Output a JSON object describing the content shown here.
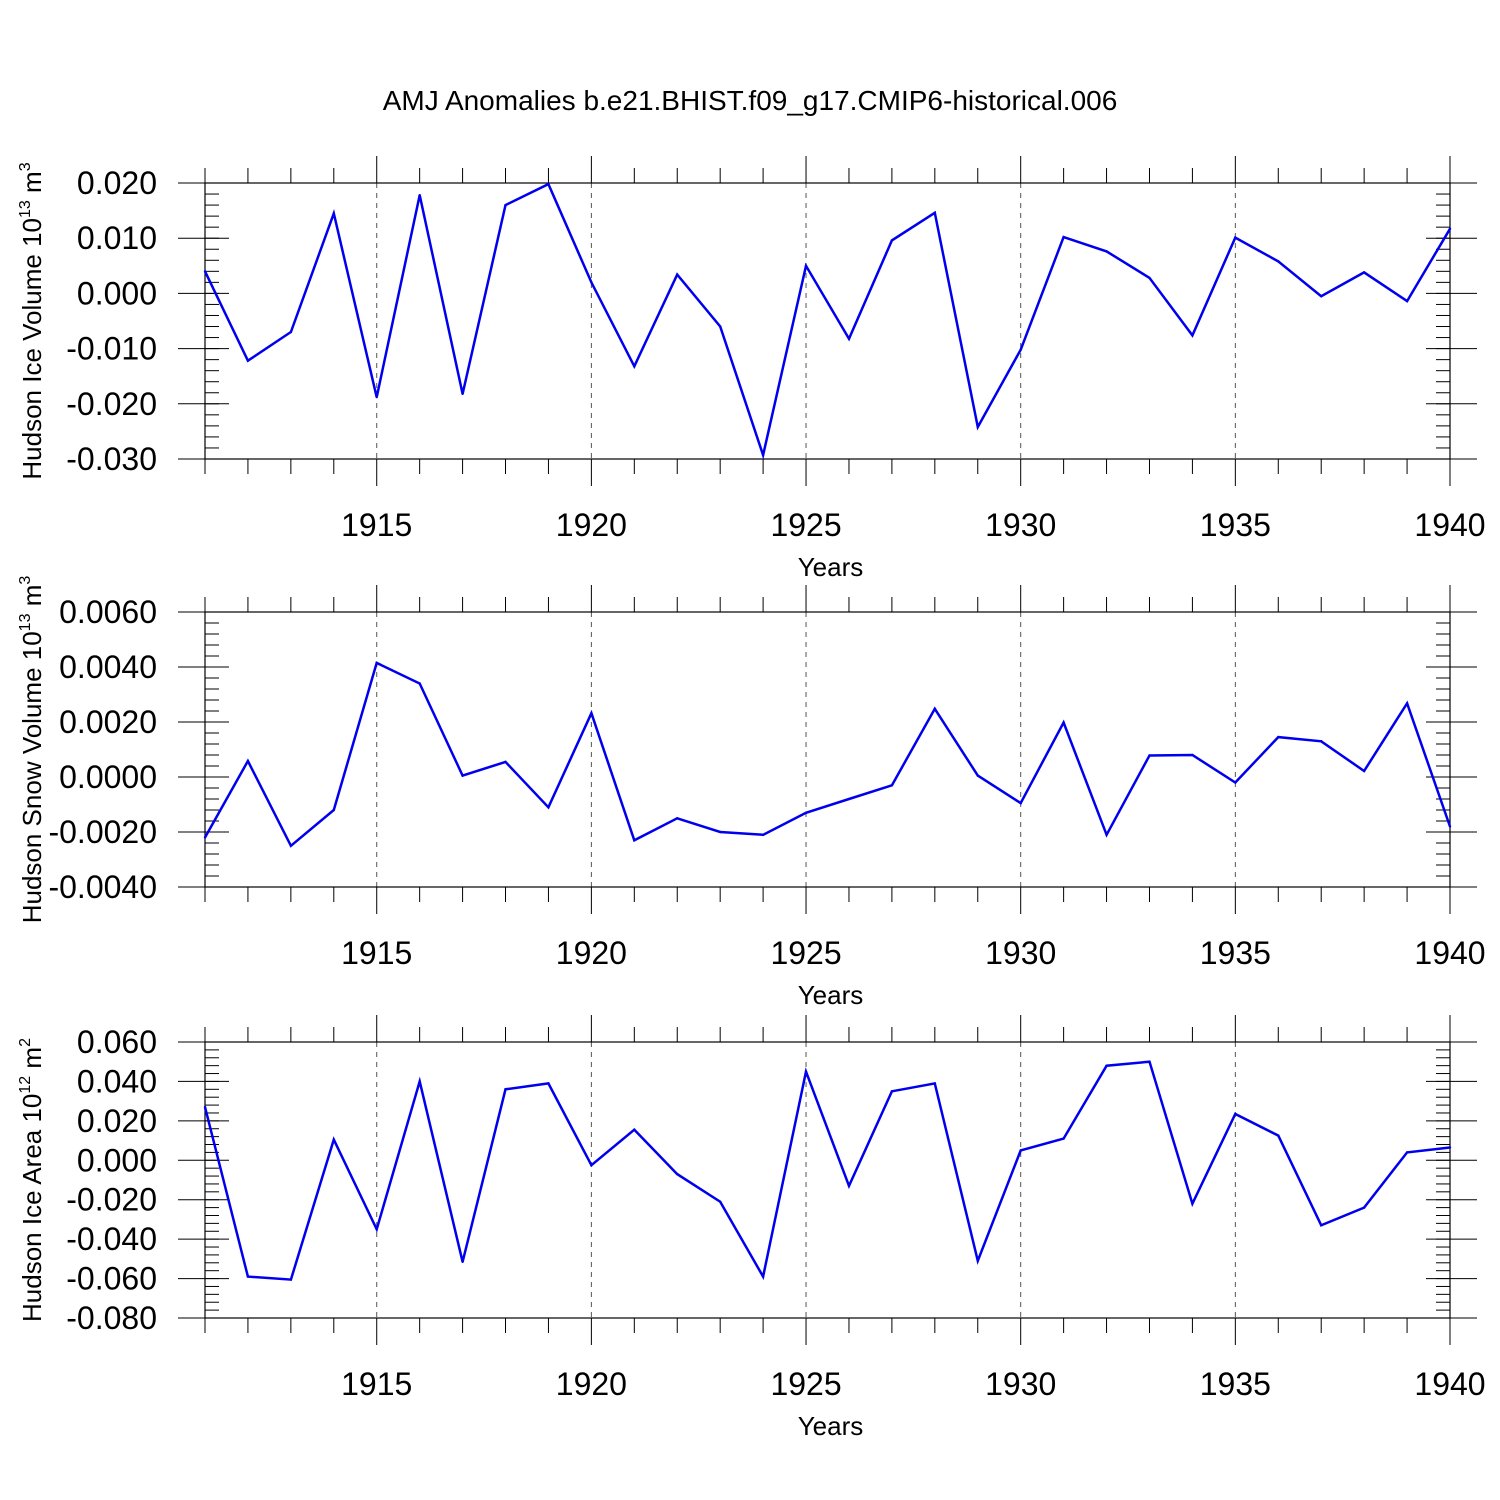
{
  "chart_data": {
    "title": "AMJ Anomalies b.e21.BHIST.f09_g17.CMIP6-historical.006",
    "type": "line",
    "x": [
      1911,
      1912,
      1913,
      1914,
      1915,
      1916,
      1917,
      1918,
      1919,
      1920,
      1921,
      1922,
      1923,
      1924,
      1925,
      1926,
      1927,
      1928,
      1929,
      1930,
      1931,
      1932,
      1933,
      1934,
      1935,
      1936,
      1937,
      1938,
      1939,
      1940
    ],
    "xlim": [
      1911,
      1940
    ],
    "xticks": [
      1915,
      1920,
      1925,
      1930,
      1935,
      1940
    ],
    "xlabel": "Years",
    "panels": [
      {
        "ylabel_main": "Hudson Ice Volume 10",
        "ylabel_exp": "13",
        "ylabel_unit": " m",
        "ylabel_unit_exp": "3",
        "ylim": [
          -0.03,
          0.02
        ],
        "yticks": [
          0.02,
          0.01,
          0.0,
          -0.01,
          -0.02,
          -0.03
        ],
        "ytick_labels": [
          "0.020",
          "0.010",
          "0.000",
          "-0.010",
          "-0.020",
          "-0.030"
        ],
        "minor_step": 0.002,
        "values": [
          0.004,
          -0.0122,
          -0.007,
          0.0145,
          -0.0188,
          0.0178,
          -0.0182,
          0.016,
          0.0198,
          0.002,
          -0.0132,
          0.0034,
          -0.006,
          -0.0293,
          0.005,
          -0.0082,
          0.0096,
          0.0146,
          -0.0242,
          -0.0102,
          0.0102,
          0.0076,
          0.0028,
          -0.0076,
          0.0101,
          0.0058,
          -0.0005,
          0.0038,
          -0.0014,
          0.0117
        ]
      },
      {
        "ylabel_main": "Hudson Snow Volume 10",
        "ylabel_exp": "13",
        "ylabel_unit": " m",
        "ylabel_unit_exp": "3",
        "ylim": [
          -0.004,
          0.006
        ],
        "yticks": [
          0.006,
          0.004,
          0.002,
          0.0,
          -0.002,
          -0.004
        ],
        "ytick_labels": [
          "0.0060",
          "0.0040",
          "0.0020",
          "0.0000",
          "-0.0020",
          "-0.0040"
        ],
        "minor_step": 0.0004,
        "values": [
          -0.0022,
          0.00058,
          -0.0025,
          -0.0012,
          0.00415,
          0.0034,
          5e-05,
          0.00055,
          -0.0011,
          0.00232,
          -0.0023,
          -0.0015,
          -0.002,
          -0.0021,
          -0.0013,
          -0.0008,
          -0.0003,
          0.00248,
          5e-05,
          -0.00095,
          0.00198,
          -0.0021,
          0.00078,
          0.0008,
          -0.0002,
          0.00145,
          0.0013,
          0.00022,
          0.00268,
          -0.0018
        ]
      },
      {
        "ylabel_main": "Hudson Ice Area 10",
        "ylabel_exp": "12",
        "ylabel_unit": " m",
        "ylabel_unit_exp": "2",
        "ylim": [
          -0.08,
          0.06
        ],
        "yticks": [
          0.06,
          0.04,
          0.02,
          0.0,
          -0.02,
          -0.04,
          -0.06,
          -0.08
        ],
        "ytick_labels": [
          "0.060",
          "0.040",
          "0.020",
          "0.000",
          "-0.020",
          "-0.040",
          "-0.060",
          "-0.080"
        ],
        "minor_step": 0.004,
        "values": [
          0.027,
          -0.059,
          -0.0605,
          0.0105,
          -0.035,
          0.04,
          -0.0515,
          0.036,
          0.039,
          -0.0025,
          0.0155,
          -0.007,
          -0.021,
          -0.059,
          0.045,
          -0.013,
          0.035,
          0.039,
          -0.051,
          0.005,
          0.011,
          0.048,
          0.05,
          -0.022,
          0.0235,
          0.0125,
          -0.033,
          -0.024,
          0.004,
          0.0065
        ]
      }
    ]
  }
}
